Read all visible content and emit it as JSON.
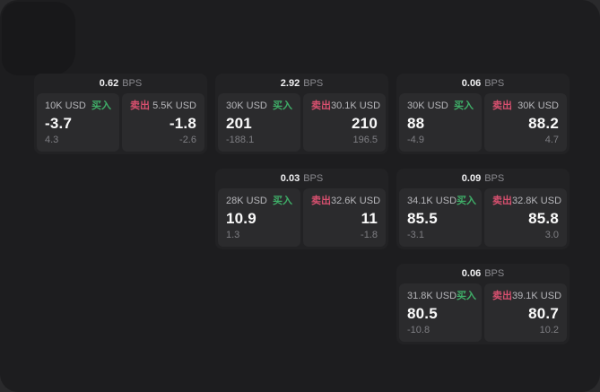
{
  "labels": {
    "bps_unit": "BPS",
    "buy": "买入",
    "sell": "卖出"
  },
  "colors": {
    "buy_green": "#3fae68",
    "sell_red": "#d8506f"
  },
  "cards": [
    {
      "bps": "0.62",
      "buy": {
        "size": "10K USD",
        "price": "-3.7",
        "delta": "4.3"
      },
      "sell": {
        "size": "5.5K USD",
        "price": "-1.8",
        "delta": "-2.6"
      }
    },
    {
      "bps": "2.92",
      "buy": {
        "size": "30K USD",
        "price": "201",
        "delta": "-188.1"
      },
      "sell": {
        "size": "30.1K USD",
        "price": "210",
        "delta": "196.5"
      }
    },
    {
      "bps": "0.06",
      "buy": {
        "size": "30K USD",
        "price": "88",
        "delta": "-4.9"
      },
      "sell": {
        "size": "30K USD",
        "price": "88.2",
        "delta": "4.7"
      }
    },
    {
      "bps": "0.03",
      "buy": {
        "size": "28K USD",
        "price": "10.9",
        "delta": "1.3"
      },
      "sell": {
        "size": "32.6K USD",
        "price": "11",
        "delta": "-1.8"
      }
    },
    {
      "bps": "0.09",
      "buy": {
        "size": "34.1K USD",
        "price": "85.5",
        "delta": "-3.1"
      },
      "sell": {
        "size": "32.8K USD",
        "price": "85.8",
        "delta": "3.0"
      }
    },
    {
      "bps": "0.06",
      "buy": {
        "size": "31.8K USD",
        "price": "80.5",
        "delta": "-10.8"
      },
      "sell": {
        "size": "39.1K USD",
        "price": "80.7",
        "delta": "10.2"
      }
    }
  ]
}
